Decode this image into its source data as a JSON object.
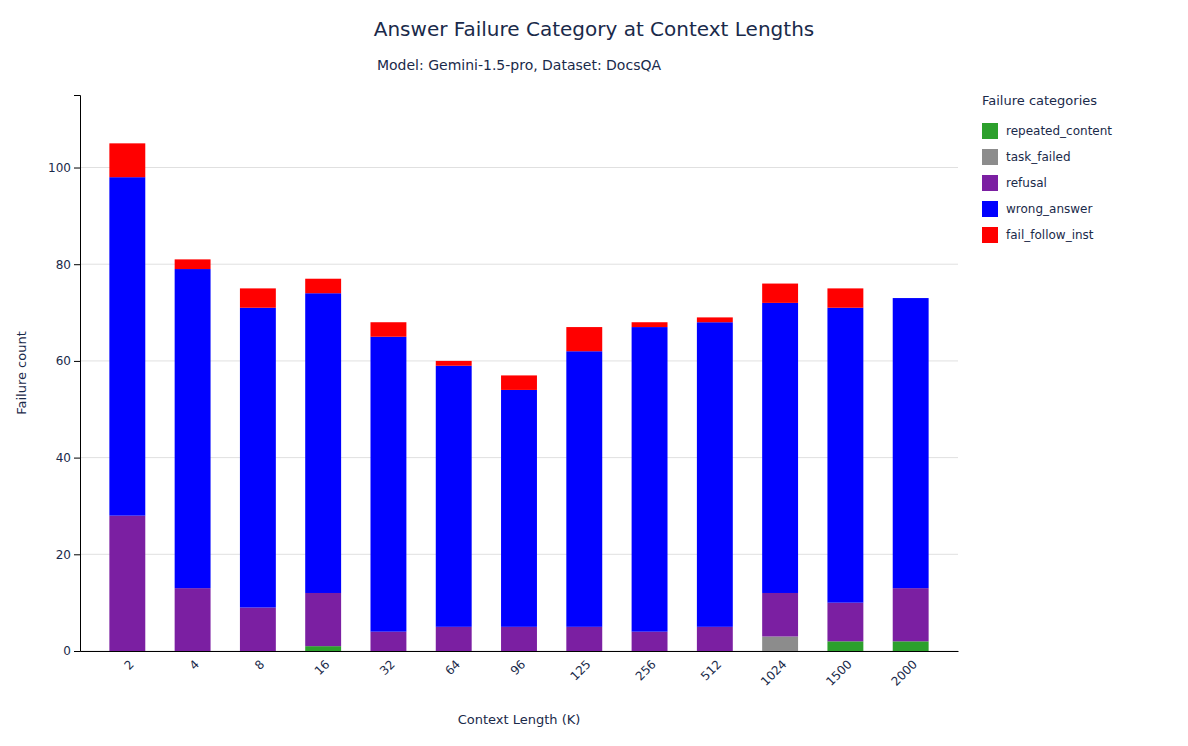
{
  "chart_data": {
    "type": "bar",
    "stacked": true,
    "title": "Answer Failure Category at Context Lengths",
    "subtitle": "Model: Gemini-1.5-pro, Dataset: DocsQA",
    "xlabel": "Context Length (K)",
    "ylabel": "Failure count",
    "legend_title": "Failure categories",
    "categories": [
      "2",
      "4",
      "8",
      "16",
      "32",
      "64",
      "96",
      "125",
      "256",
      "512",
      "1024",
      "1500",
      "2000"
    ],
    "series": [
      {
        "name": "repeated_content",
        "color": "#2ca02c",
        "values": [
          0,
          0,
          0,
          1,
          0,
          0,
          0,
          0,
          0,
          0,
          0,
          2,
          2
        ]
      },
      {
        "name": "task_failed",
        "color": "#8c8c8c",
        "values": [
          0,
          0,
          0,
          0,
          0,
          0,
          0,
          0,
          0,
          0,
          3,
          0,
          0
        ]
      },
      {
        "name": "refusal",
        "color": "#7b1fa2",
        "values": [
          28,
          13,
          9,
          11,
          4,
          5,
          5,
          5,
          4,
          5,
          9,
          8,
          11
        ]
      },
      {
        "name": "wrong_answer",
        "color": "#0000ff",
        "values": [
          70,
          66,
          62,
          62,
          61,
          54,
          49,
          57,
          63,
          63,
          60,
          61,
          60
        ]
      },
      {
        "name": "fail_follow_inst",
        "color": "#ff0000",
        "values": [
          7,
          2,
          4,
          3,
          3,
          1,
          3,
          5,
          1,
          1,
          4,
          4,
          0
        ]
      }
    ],
    "ylim": [
      0,
      115
    ],
    "yticks": [
      0,
      20,
      40,
      60,
      80,
      100
    ],
    "grid": true,
    "legend": "right"
  }
}
